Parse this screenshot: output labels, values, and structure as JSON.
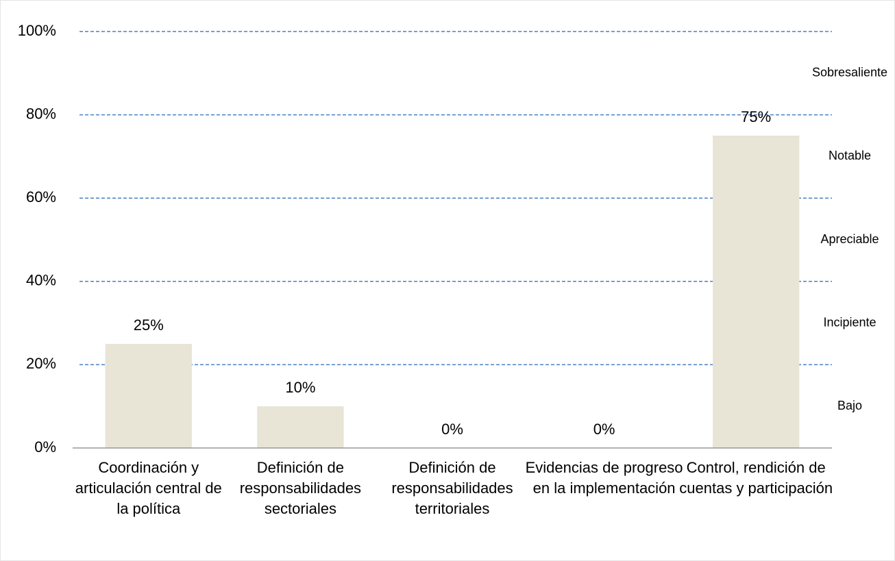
{
  "chart_data": {
    "type": "bar",
    "categories": [
      "Coordinación y articulación central de la política",
      "Definición de responsabilidades sectoriales",
      "Definición de responsabilidades territoriales",
      "Evidencias de progreso en la implementación",
      "Control, rendición de cuentas y participación"
    ],
    "values": [
      25,
      10,
      0,
      0,
      75
    ],
    "value_labels": [
      "25%",
      "10%",
      "0%",
      "0%",
      "75%"
    ],
    "color": "#e8e4d6",
    "ylim": [
      0,
      100
    ],
    "yticks": [
      {
        "value": 0,
        "label": "0%"
      },
      {
        "value": 20,
        "label": "20%"
      },
      {
        "value": 40,
        "label": "40%"
      },
      {
        "value": 60,
        "label": "60%"
      },
      {
        "value": 80,
        "label": "80%"
      },
      {
        "value": 100,
        "label": "100%"
      }
    ],
    "grid": true,
    "grid_color": "#4a7fc1",
    "levels": [
      "Bajo",
      "Incipiente",
      "Apreciable",
      "Notable",
      "Sobresaliente"
    ]
  }
}
